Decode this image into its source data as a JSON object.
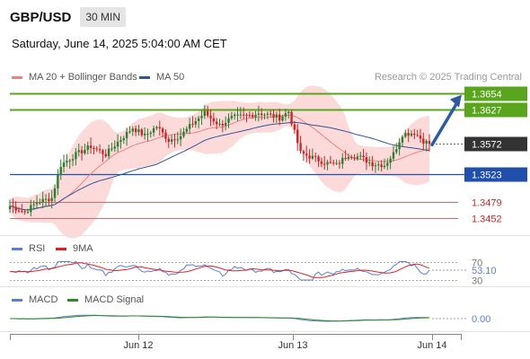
{
  "header": {
    "symbol": "GBP/USD",
    "timeframe": "30 MIN"
  },
  "datetime": "Saturday, June 14, 2025 5:04:00 AM CET",
  "credit": "Research © 2025 Trading Central",
  "colors": {
    "ma20": "#f08080",
    "ma50": "#2e5597",
    "bollinger_fill": "#fbd3d3",
    "bull": "#2e7d32",
    "bear": "#c62828",
    "resistance": "#5aa51e",
    "support": "#1f4faa",
    "weak_support": "#e06666",
    "current": "#333333",
    "arrow": "#2e5aa0",
    "rsi": "#5b7fd6",
    "rsi_ma": "#e02020",
    "macd": "#5b7fd6",
    "macd_signal": "#2e8b22"
  },
  "chart_data": [
    {
      "type": "candlestick",
      "title": "GBP/USD",
      "legend": [
        {
          "name": "MA 20 + Bollinger Bands",
          "color": "#f08080"
        },
        {
          "name": "MA 50",
          "color": "#2e5597"
        }
      ],
      "x_ticks": [
        "Jun 12",
        "Jun 13",
        "Jun 14"
      ],
      "ylim": [
        1.3425,
        1.3665
      ],
      "price_anchors": [
        [
          0,
          1.3472
        ],
        [
          5,
          1.3462
        ],
        [
          9,
          1.3478
        ],
        [
          14,
          1.3485
        ],
        [
          17,
          1.3538
        ],
        [
          22,
          1.3555
        ],
        [
          27,
          1.3568
        ],
        [
          32,
          1.3555
        ],
        [
          36,
          1.3575
        ],
        [
          41,
          1.3598
        ],
        [
          45,
          1.3585
        ],
        [
          49,
          1.36
        ],
        [
          53,
          1.3578
        ],
        [
          57,
          1.3585
        ],
        [
          61,
          1.3605
        ],
        [
          65,
          1.3622
        ],
        [
          70,
          1.3602
        ],
        [
          74,
          1.3614
        ],
        [
          80,
          1.3618
        ],
        [
          83,
          1.3622
        ],
        [
          87,
          1.3618
        ],
        [
          90,
          1.3614
        ],
        [
          93,
          1.3624
        ],
        [
          97,
          1.3557
        ],
        [
          101,
          1.355
        ],
        [
          105,
          1.3542
        ],
        [
          109,
          1.3538
        ],
        [
          113,
          1.3555
        ],
        [
          117,
          1.355
        ],
        [
          121,
          1.354
        ],
        [
          125,
          1.3538
        ],
        [
          128,
          1.3556
        ],
        [
          131,
          1.3588
        ],
        [
          135,
          1.359
        ],
        [
          138,
          1.3577
        ],
        [
          140,
          1.3572
        ]
      ],
      "levels": [
        {
          "label": "1.3654",
          "value": 1.3654,
          "kind": "resistance"
        },
        {
          "label": "1.3627",
          "value": 1.3627,
          "kind": "resistance"
        },
        {
          "label": "1.3572",
          "value": 1.3572,
          "kind": "current"
        },
        {
          "label": "1.3523",
          "value": 1.3523,
          "kind": "support"
        },
        {
          "label": "1.3479",
          "value": 1.3479,
          "kind": "weak_support"
        },
        {
          "label": "1.3452",
          "value": 1.3452,
          "kind": "weak_support"
        }
      ],
      "forecast_arrow": {
        "from": 1.3572,
        "to": 1.3654
      }
    },
    {
      "type": "line",
      "title": "RSI",
      "legend": [
        {
          "name": "RSI",
          "color": "#5b7fd6"
        },
        {
          "name": "9MA",
          "color": "#e02020"
        }
      ],
      "ylim": [
        25,
        75
      ],
      "reference_levels": [
        70,
        30
      ],
      "last_value": "53.10"
    },
    {
      "type": "line",
      "title": "MACD",
      "legend": [
        {
          "name": "MACD",
          "color": "#5b7fd6"
        },
        {
          "name": "MACD Signal",
          "color": "#2e8b22"
        }
      ],
      "zero_label": "0.00"
    }
  ]
}
